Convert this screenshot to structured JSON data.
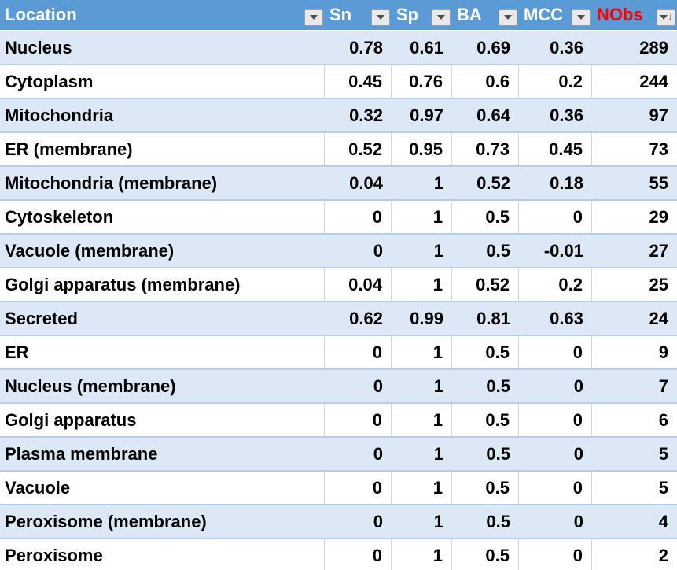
{
  "app": {
    "name": "spreadsheet-filtered-table"
  },
  "colors": {
    "header_bg": "#5B9BD5",
    "header_text": "#FFFFFF",
    "nobs_header_text": "#FF0000",
    "banded_row_bg": "#DCE8F5",
    "row_border": "#B6CEE8",
    "gridline": "#D6D6D6",
    "cell_text": "#000000",
    "filter_button_bg": "#E9E9E9",
    "filter_button_border": "#9D9D9D"
  },
  "table": {
    "columns": [
      {
        "label": "Location",
        "filter": "dropdown"
      },
      {
        "label": "Sn",
        "filter": "dropdown"
      },
      {
        "label": "Sp",
        "filter": "dropdown"
      },
      {
        "label": "BA",
        "filter": "dropdown"
      },
      {
        "label": "MCC",
        "filter": "dropdown"
      },
      {
        "label": "NObs",
        "filter": "dropdown-sorted-descending"
      }
    ],
    "rows": [
      {
        "location": "Nucleus",
        "sn": "0.78",
        "sp": "0.61",
        "ba": "0.69",
        "mcc": "0.36",
        "nobs": "289"
      },
      {
        "location": "Cytoplasm",
        "sn": "0.45",
        "sp": "0.76",
        "ba": "0.6",
        "mcc": "0.2",
        "nobs": "244"
      },
      {
        "location": "Mitochondria",
        "sn": "0.32",
        "sp": "0.97",
        "ba": "0.64",
        "mcc": "0.36",
        "nobs": "97"
      },
      {
        "location": "ER (membrane)",
        "sn": "0.52",
        "sp": "0.95",
        "ba": "0.73",
        "mcc": "0.45",
        "nobs": "73"
      },
      {
        "location": "Mitochondria (membrane)",
        "sn": "0.04",
        "sp": "1",
        "ba": "0.52",
        "mcc": "0.18",
        "nobs": "55"
      },
      {
        "location": "Cytoskeleton",
        "sn": "0",
        "sp": "1",
        "ba": "0.5",
        "mcc": "0",
        "nobs": "29"
      },
      {
        "location": "Vacuole (membrane)",
        "sn": "0",
        "sp": "1",
        "ba": "0.5",
        "mcc": "-0.01",
        "nobs": "27"
      },
      {
        "location": "Golgi apparatus (membrane)",
        "sn": "0.04",
        "sp": "1",
        "ba": "0.52",
        "mcc": "0.2",
        "nobs": "25"
      },
      {
        "location": "Secreted",
        "sn": "0.62",
        "sp": "0.99",
        "ba": "0.81",
        "mcc": "0.63",
        "nobs": "24"
      },
      {
        "location": "ER",
        "sn": "0",
        "sp": "1",
        "ba": "0.5",
        "mcc": "0",
        "nobs": "9"
      },
      {
        "location": "Nucleus (membrane)",
        "sn": "0",
        "sp": "1",
        "ba": "0.5",
        "mcc": "0",
        "nobs": "7"
      },
      {
        "location": "Golgi apparatus",
        "sn": "0",
        "sp": "1",
        "ba": "0.5",
        "mcc": "0",
        "nobs": "6"
      },
      {
        "location": "Plasma membrane",
        "sn": "0",
        "sp": "1",
        "ba": "0.5",
        "mcc": "0",
        "nobs": "5"
      },
      {
        "location": "Vacuole",
        "sn": "0",
        "sp": "1",
        "ba": "0.5",
        "mcc": "0",
        "nobs": "5"
      },
      {
        "location": "Peroxisome (membrane)",
        "sn": "0",
        "sp": "1",
        "ba": "0.5",
        "mcc": "0",
        "nobs": "4"
      },
      {
        "location": "Peroxisome",
        "sn": "0",
        "sp": "1",
        "ba": "0.5",
        "mcc": "0",
        "nobs": "2"
      }
    ]
  }
}
